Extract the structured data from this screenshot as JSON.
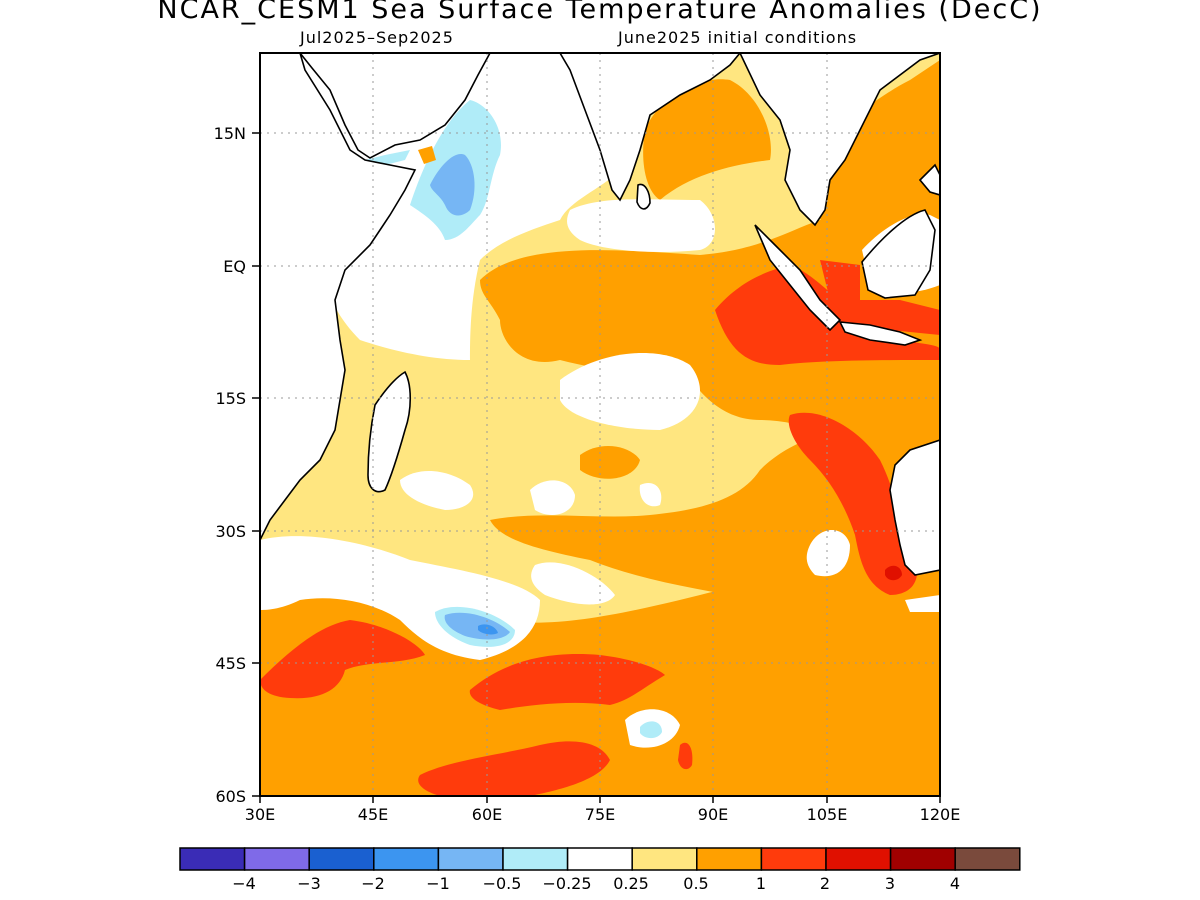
{
  "title": "NCAR_CESM1 Sea Surface Temperature Anomalies (DecC)",
  "subtitle_left": "Jul2025–Sep2025",
  "subtitle_right": "June2025 initial conditions",
  "lat_labels": [
    "15N",
    "EQ",
    "15S",
    "30S",
    "45S",
    "60S"
  ],
  "lon_labels": [
    "30E",
    "45E",
    "60E",
    "75E",
    "90E",
    "105E",
    "120E"
  ],
  "colorbar": {
    "colors": [
      "#3a2cb6",
      "#7f6ae8",
      "#1a60d0",
      "#3c95f0",
      "#76b6f4",
      "#b0ecf8",
      "#ffffff",
      "#ffe680",
      "#ffa000",
      "#ff3b0c",
      "#e01000",
      "#a00000",
      "#7a4a3c"
    ],
    "labels": [
      "−4",
      "−3",
      "−2",
      "−1",
      "−0.5",
      "−0.25",
      "0.25",
      "0.5",
      "1",
      "2",
      "3",
      "4"
    ]
  },
  "palette": {
    "white": "#ffffff",
    "yellow": "#ffe680",
    "orange": "#ffa000",
    "red": "#ff3b0c",
    "darkred": "#e01000",
    "lightcyan": "#b0ecf8",
    "lightblue": "#76b6f4",
    "blue": "#3c95f0"
  }
}
